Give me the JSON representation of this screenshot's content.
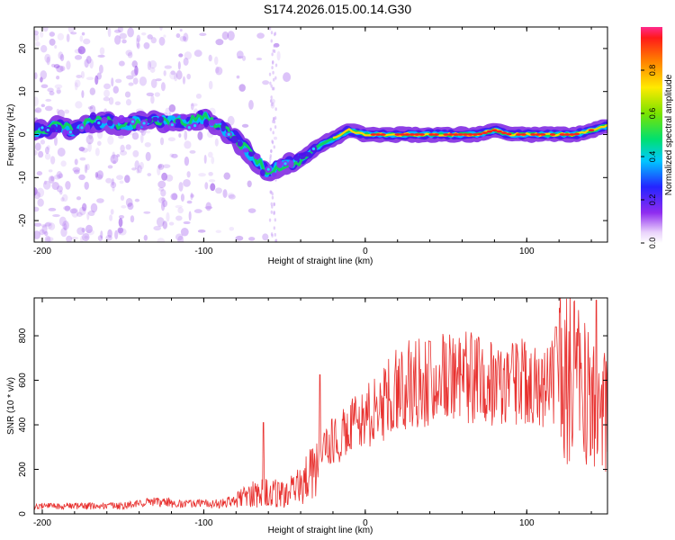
{
  "title": "S174.2026.015.00.14.G30",
  "colors": {
    "snr_line": "#e8312f",
    "axis": "#000000"
  },
  "chart_data": [
    {
      "type": "heatmap",
      "title": "S174.2026.015.00.14.G30",
      "xlabel": "Height of straight line (km)",
      "ylabel": "Frequency (Hz)",
      "xlim": [
        -205,
        150
      ],
      "ylim": [
        -25,
        25
      ],
      "xticks": [
        -200,
        -100,
        0,
        100
      ],
      "xtick_labels": [
        "-200",
        "-100",
        "0",
        "100"
      ],
      "yticks": [
        -20,
        -10,
        0,
        10,
        20
      ],
      "ytick_labels": [
        "-20",
        "-10",
        "0",
        "10",
        "20"
      ],
      "ridge": {
        "x": [
          -200,
          -190,
          -180,
          -170,
          -160,
          -150,
          -140,
          -130,
          -120,
          -110,
          -100,
          -90,
          -80,
          -70,
          -60,
          -50,
          -40,
          -30,
          -20,
          -10,
          0,
          10,
          20,
          30,
          40,
          50,
          60,
          70,
          80,
          90,
          100,
          110,
          120,
          130,
          140,
          150
        ],
        "y": [
          1,
          2,
          1,
          3,
          3,
          2,
          3,
          3,
          3,
          3,
          4,
          2,
          -1,
          -5,
          -9,
          -7,
          -6,
          -3,
          -1,
          1,
          0,
          0,
          0,
          0,
          0,
          0,
          0,
          0,
          1,
          0,
          0,
          0,
          0,
          0,
          1,
          2
        ]
      },
      "colorbar": {
        "label": "Normalized spectral amplitude",
        "range": [
          0,
          1
        ],
        "ticks": [
          0.0,
          0.2,
          0.4,
          0.6,
          0.8
        ],
        "tick_labels": [
          "0.0",
          "0.2",
          "0.4",
          "0.6",
          "0.8"
        ]
      }
    },
    {
      "type": "line",
      "xlabel": "Height of straight line (km)",
      "ylabel": "SNR (10 * v/v)",
      "xlim": [
        -205,
        150
      ],
      "ylim": [
        0,
        970
      ],
      "xticks": [
        -200,
        -100,
        0,
        100
      ],
      "xtick_labels": [
        "-200",
        "-100",
        "0",
        "100"
      ],
      "yticks": [
        0,
        200,
        400,
        600,
        800
      ],
      "ytick_labels": [
        "0",
        "200",
        "400",
        "600",
        "800"
      ],
      "envelope": {
        "x": [
          -205,
          -180,
          -150,
          -130,
          -110,
          -90,
          -80,
          -70,
          -60,
          -50,
          -40,
          -30,
          -20,
          -10,
          0,
          10,
          20,
          30,
          40,
          50,
          60,
          70,
          80,
          90,
          100,
          110,
          120,
          130,
          140,
          150
        ],
        "y": [
          35,
          35,
          35,
          55,
          45,
          45,
          60,
          90,
          100,
          80,
          130,
          220,
          330,
          380,
          430,
          480,
          560,
          590,
          600,
          620,
          610,
          600,
          600,
          600,
          590,
          580,
          600,
          600,
          500,
          480
        ]
      },
      "spikes": [
        {
          "x": -63,
          "y": 410
        },
        {
          "x": -28,
          "y": 625
        },
        {
          "x": 40,
          "y": 775
        },
        {
          "x": 118,
          "y": 840
        },
        {
          "x": 143,
          "y": 960
        }
      ]
    }
  ]
}
